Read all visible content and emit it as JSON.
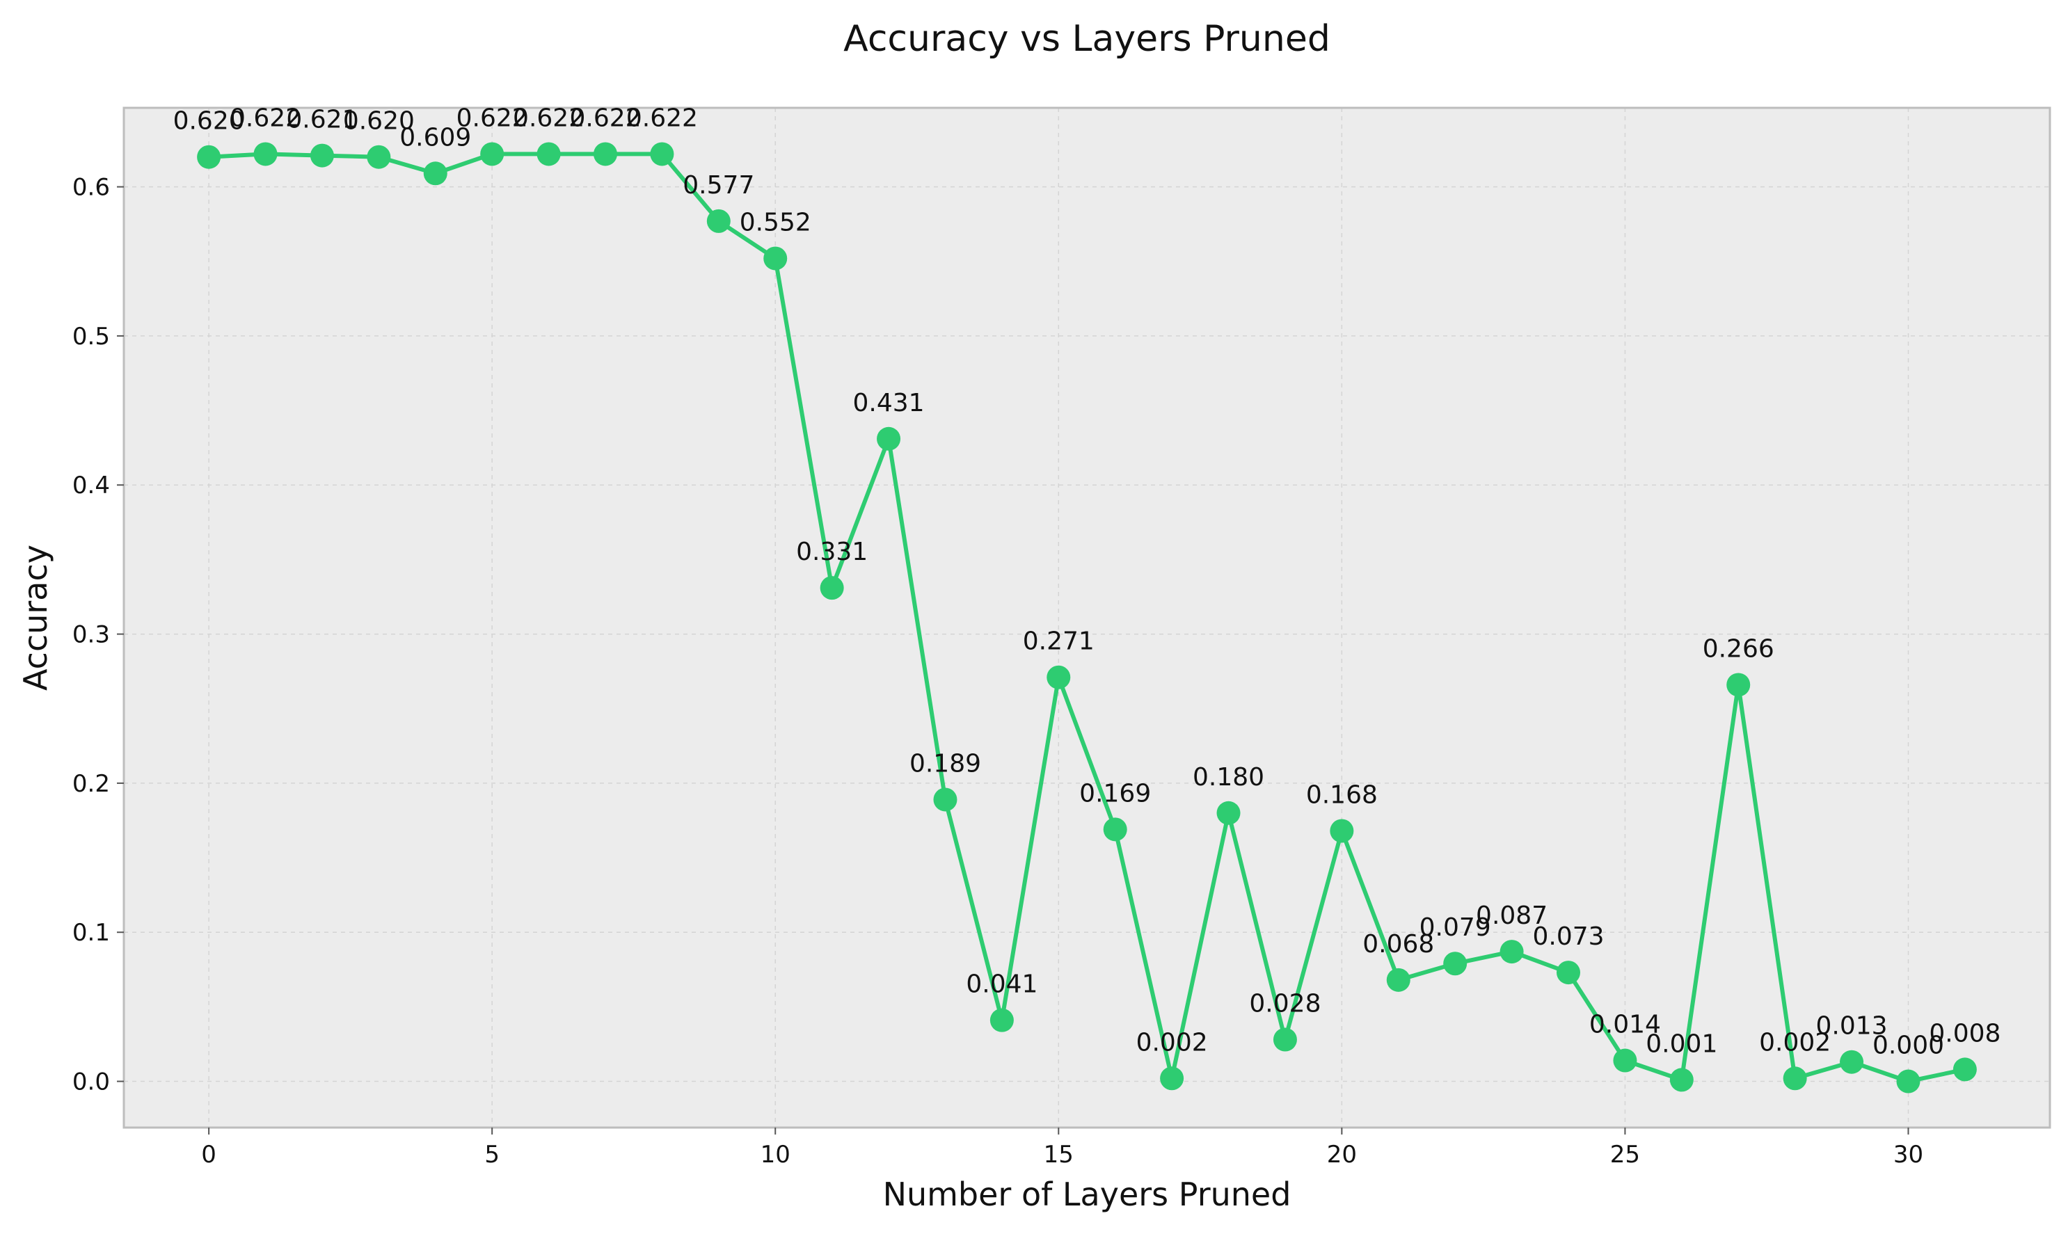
{
  "chart_data": {
    "type": "line",
    "title": "Accuracy vs Layers Pruned",
    "xlabel": "Number of Layers Pruned",
    "ylabel": "Accuracy",
    "xlim": [
      -1.5,
      32.5
    ],
    "ylim": [
      -0.031,
      0.653
    ],
    "xticks": [
      0,
      5,
      10,
      15,
      20,
      25,
      30
    ],
    "yticks": [
      0.0,
      0.1,
      0.2,
      0.3,
      0.4,
      0.5,
      0.6
    ],
    "ytick_labels": [
      "0.0",
      "0.1",
      "0.2",
      "0.3",
      "0.4",
      "0.5",
      "0.6"
    ],
    "grid": true,
    "line_color": "#2ecc71",
    "series": [
      {
        "x": [
          0,
          1,
          2,
          3,
          4,
          5,
          6,
          7,
          8,
          9,
          10,
          11,
          12,
          13,
          14,
          15,
          16,
          17,
          18,
          19,
          20,
          21,
          22,
          23,
          24,
          25,
          26,
          27,
          28,
          29,
          30,
          31
        ],
        "values": [
          0.62,
          0.622,
          0.621,
          0.62,
          0.609,
          0.622,
          0.622,
          0.622,
          0.622,
          0.577,
          0.552,
          0.331,
          0.431,
          0.189,
          0.041,
          0.271,
          0.169,
          0.002,
          0.18,
          0.028,
          0.168,
          0.068,
          0.079,
          0.087,
          0.073,
          0.014,
          0.001,
          0.266,
          0.002,
          0.013,
          0.0,
          0.008
        ],
        "labels": [
          "0.620",
          "0.622",
          "0.621",
          "0.620",
          "0.609",
          "0.622",
          "0.622",
          "0.622",
          "0.622",
          "0.577",
          "0.552",
          "0.331",
          "0.431",
          "0.189",
          "0.041",
          "0.271",
          "0.169",
          "0.002",
          "0.180",
          "0.028",
          "0.168",
          "0.068",
          "0.079",
          "0.087",
          "0.073",
          "0.014",
          "0.001",
          "0.266",
          "0.002",
          "0.013",
          "0.000",
          "0.008"
        ]
      }
    ]
  }
}
